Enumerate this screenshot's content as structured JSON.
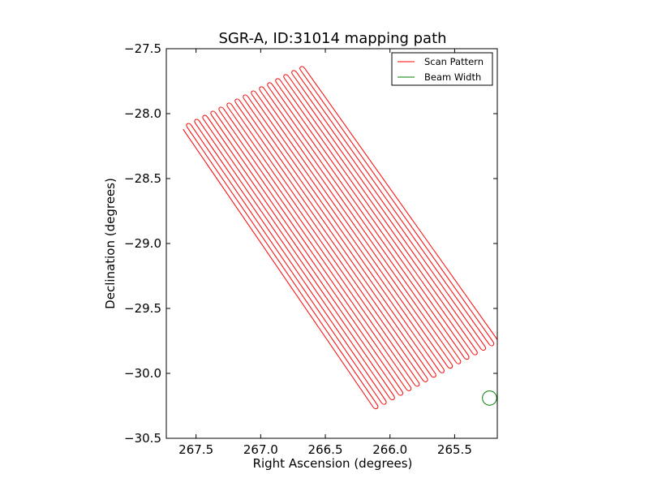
{
  "chart_data": {
    "type": "line",
    "title": "SGR-A, ID:31014 mapping path",
    "xlabel": "Right Ascension (degrees)",
    "ylabel": "Declination (degrees)",
    "xlim": [
      267.73,
      265.17
    ],
    "ylim": [
      -30.5,
      -27.5
    ],
    "x_inverted": true,
    "xticks": [
      267.5,
      267.0,
      266.5,
      266.0,
      265.5
    ],
    "xtick_labels": [
      "267.5",
      "267.0",
      "266.5",
      "266.0",
      "265.5"
    ],
    "yticks": [
      -27.5,
      -28.0,
      -28.5,
      -29.0,
      -29.5,
      -30.0,
      -30.5
    ],
    "ytick_labels": [
      "−27.5",
      "−28.0",
      "−28.5",
      "−29.0",
      "−29.5",
      "−30.0",
      "−30.5"
    ],
    "grid": false,
    "legend_position": "top-right",
    "series": [
      {
        "name": "Scan Pattern",
        "color": "#ff0000",
        "scan_lines": {
          "count": 31,
          "top_start": {
            "ra": 267.6,
            "dec": -28.12
          },
          "top_end": {
            "ra": 266.66,
            "dec": -27.65
          },
          "bottom_start": {
            "ra": 266.13,
            "dec": -30.26
          },
          "bottom_end": {
            "ra": 265.17,
            "dec": -29.74
          }
        }
      },
      {
        "name": "Beam Width",
        "color": "#008000",
        "circle": {
          "center": {
            "ra": 265.23,
            "dec": -30.19
          },
          "radius_deg": 0.055
        }
      }
    ]
  }
}
